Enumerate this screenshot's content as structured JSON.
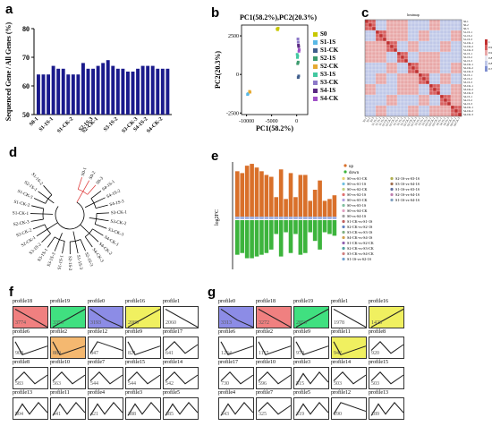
{
  "panels": {
    "a": {
      "label": "a"
    },
    "b": {
      "label": "b"
    },
    "c": {
      "label": "c"
    },
    "d": {
      "label": "d"
    },
    "e": {
      "label": "e"
    },
    "f": {
      "label": "f"
    },
    "g": {
      "label": "g"
    }
  },
  "chart_data": [
    {
      "type": "bar",
      "panel": "a",
      "ylabel": "Sequenced Gene / All Genes (%)",
      "ylim": [
        50,
        80
      ],
      "yticks": [
        50,
        60,
        70,
        80
      ],
      "categories": [
        "S0-1",
        "S0-2",
        "S0-3",
        "S1-1S-1",
        "S1-1S-2",
        "S1-1S-3",
        "S1-CK-1",
        "S1-CK-2",
        "S1-CK-3",
        "S2-1S-1",
        "S2-1S-2",
        "S2-1S-3",
        "S2-CK-1",
        "S2-CK-2",
        "S2-CK-3",
        "S3-1S-1",
        "S3-1S-2",
        "S3-1S-3",
        "S3-CK-1",
        "S3-CK-2",
        "S3-CK-3",
        "S4-1S-1",
        "S4-1S-2",
        "S4-1S-3",
        "S4-CK-1",
        "S4-CK-2",
        "S4-CK-3"
      ],
      "tick_labels": [
        "S0-1",
        "S1-1S-1",
        "S1-CK-2",
        "S2-1S-3",
        "S2-CK-1",
        "S3-1S-2",
        "S3-CK-3",
        "S4-1S-2",
        "S4-CK-2"
      ],
      "values": [
        64,
        64,
        64,
        67,
        66,
        66,
        64,
        64,
        64,
        68,
        66,
        66,
        67,
        68,
        69,
        67,
        66,
        66,
        65,
        65,
        66,
        67,
        67,
        67,
        66,
        66,
        66
      ],
      "color": "#1a1a8c"
    },
    {
      "type": "scatter",
      "panel": "b",
      "title": "PC1(58.2%),PC2(20.3%)",
      "xlabel": "PC1(58.2%)",
      "ylabel": "PC2(20.3%)",
      "xlim": [
        -11000,
        2200
      ],
      "ylim": [
        -2600,
        3200
      ],
      "xticks": [
        -10000,
        -5000,
        0
      ],
      "yticks": [
        -2500,
        0,
        2500
      ],
      "series": [
        {
          "name": "S0",
          "color": "#c8c800",
          "points": [
            [
              -3900,
              2950
            ],
            [
              -3700,
              3000
            ],
            [
              -3800,
              2900
            ]
          ]
        },
        {
          "name": "S1-1S",
          "color": "#5ab9e6",
          "points": [
            [
              -9800,
              -1300
            ],
            [
              -9700,
              -1250
            ]
          ]
        },
        {
          "name": "S1-CK",
          "color": "#3f5e8c",
          "points": [
            [
              300,
              -200
            ],
            [
              400,
              -100
            ]
          ]
        },
        {
          "name": "S2-1S",
          "color": "#3c9b6e",
          "points": [
            [
              200,
              700
            ],
            [
              300,
              800
            ]
          ]
        },
        {
          "name": "S2-CK",
          "color": "#e6aa32",
          "points": [
            [
              -9400,
              -1100
            ],
            [
              -9300,
              -1150
            ]
          ]
        },
        {
          "name": "S3-1S",
          "color": "#41c8a0",
          "points": [
            [
              100,
              1300
            ],
            [
              200,
              1200
            ],
            [
              150,
              1100
            ]
          ]
        },
        {
          "name": "S3-CK",
          "color": "#8c78c8",
          "points": [
            [
              250,
              2300
            ],
            [
              300,
              2100
            ]
          ]
        },
        {
          "name": "S4-1S",
          "color": "#5a2882",
          "points": [
            [
              350,
              1900
            ],
            [
              400,
              1800
            ]
          ]
        },
        {
          "name": "S4-CK",
          "color": "#a050c8",
          "points": [
            [
              500,
              1600
            ],
            [
              450,
              1500
            ]
          ]
        }
      ]
    },
    {
      "type": "heatmap",
      "panel": "c",
      "title": "heatmap",
      "row_labels": [
        "S0-1",
        "S0-2",
        "S0-3",
        "S1-1S-1",
        "S1-1S-2",
        "S1-1S-3",
        "S1-CK-1",
        "S1-CK-2",
        "S1-CK-3",
        "S2-1S-1",
        "S2-1S-2",
        "S2-1S-3",
        "S2-CK-1",
        "S2-CK-2",
        "S2-CK-3",
        "S3-1S-1",
        "S3-1S-2",
        "S3-1S-3",
        "S3-CK-1",
        "S3-CK-2",
        "S3-CK-3",
        "S4-1S-1",
        "S4-1S-2",
        "S4-1S-3",
        "S4-CK-1",
        "S4-CK-2",
        "S4-CK-3"
      ],
      "scale_labels": [
        "1",
        "0.95",
        "0.9",
        "0.85",
        "0.8",
        "0.75"
      ]
    },
    {
      "type": "table",
      "panel": "e",
      "ylabel": "log2FC",
      "legend_direction": [
        "up",
        "down"
      ],
      "legend_comparisons": [
        "S0-vs-S1-CK",
        "S0-vs-S1-1S",
        "S0-vs-S2-CK",
        "S0-vs-S2-1S",
        "S0-vs-S3-CK",
        "S0-vs-S3-1S",
        "S0-vs-S4-CK",
        "S0-vs-S4-1S",
        "S1-CK-vs-S1-1S",
        "S2-CK-vs-S2-1S",
        "S3-CK-vs-S3-1S",
        "S4-CK-vs-S4-1S",
        "S1-CK-vs-S2-CK",
        "S2-CK-vs-S3-CK",
        "S3-CK-vs-S4-CK",
        "S1-1S-vs-S2-1S",
        "S2-1S-vs-S3-1S",
        "S3-1S-vs-S4-1S",
        "S1-1S-vs-S3-1S",
        "S2-1S-vs-S4-1S",
        "S1-1S-vs-S4-1S"
      ]
    }
  ],
  "tree_labels": [
    "S0-1",
    "S0-2",
    "S0-3",
    "S4-1S-1",
    "S4-1S-2",
    "S4-1S-3",
    "S3-CK-1",
    "S3-CK-2",
    "S3-CK-3",
    "S4-CK-1",
    "S4-CK-2",
    "S4-CK-3",
    "S2-1S-3",
    "S1-1S-3",
    "S2-1S-2",
    "S1-1S-1",
    "S3-1S-3",
    "S3-1S-1",
    "S3-1S-2",
    "S2-CK-1",
    "S2-CK-2",
    "S2-CK-3",
    "S1-CK-1",
    "S1-CK-2",
    "S1-CK-3",
    "S2-1S-1",
    "S1-1S-2"
  ],
  "profiles_f": [
    {
      "name": "profile18",
      "count": "3774",
      "color": "#f08080",
      "shape": "down"
    },
    {
      "name": "profile19",
      "count": "3353",
      "color": "#40e080",
      "shape": "up"
    },
    {
      "name": "profile0",
      "count": "3193",
      "color": "#8c8ce6",
      "shape": "down2"
    },
    {
      "name": "profile16",
      "count": "2089",
      "color": "#f0f060",
      "shape": "up"
    },
    {
      "name": "profile1",
      "count": "2060",
      "color": "",
      "shape": "down"
    },
    {
      "name": "profile6",
      "count": "908",
      "color": "",
      "shape": "vup"
    },
    {
      "name": "profile2",
      "count": "880",
      "color": "#f4b870",
      "shape": "vup"
    },
    {
      "name": "profile12",
      "count": "847",
      "color": "",
      "shape": "vdown"
    },
    {
      "name": "profile9",
      "count": "821",
      "color": "",
      "shape": "vup"
    },
    {
      "name": "profile17",
      "count": "641",
      "color": "",
      "shape": "mix"
    },
    {
      "name": "profile8",
      "count": "583",
      "color": "",
      "shape": "mix"
    },
    {
      "name": "profile10",
      "count": "563",
      "color": "",
      "shape": "mix"
    },
    {
      "name": "profile7",
      "count": "544",
      "color": "",
      "shape": "mix"
    },
    {
      "name": "profile15",
      "count": "544",
      "color": "",
      "shape": "mix"
    },
    {
      "name": "profile14",
      "count": "542",
      "color": "",
      "shape": "mix"
    },
    {
      "name": "profile13",
      "count": "504",
      "color": "",
      "shape": "zig"
    },
    {
      "name": "profile11",
      "count": "441",
      "color": "",
      "shape": "zig"
    },
    {
      "name": "profile4",
      "count": "421",
      "color": "",
      "shape": "zig"
    },
    {
      "name": "profile3",
      "count": "388",
      "color": "",
      "shape": "zig"
    },
    {
      "name": "profile5",
      "count": "385",
      "color": "",
      "shape": "zig"
    }
  ],
  "profiles_g": [
    {
      "name": "profile0",
      "count": "3313",
      "color": "#8c8ce6",
      "shape": "down2"
    },
    {
      "name": "profile18",
      "count": "3272",
      "color": "#f08080",
      "shape": "down"
    },
    {
      "name": "profile19",
      "count": "2853",
      "color": "#40e080",
      "shape": "up"
    },
    {
      "name": "profile1",
      "count": "1978",
      "color": "",
      "shape": "down"
    },
    {
      "name": "profile16",
      "count": "1423",
      "color": "#f0f060",
      "shape": "up"
    },
    {
      "name": "profile6",
      "count": "1264",
      "color": "",
      "shape": "vup"
    },
    {
      "name": "profile2",
      "count": "1115",
      "color": "",
      "shape": "vup"
    },
    {
      "name": "profile9",
      "count": "970",
      "color": "",
      "shape": "vup"
    },
    {
      "name": "profile11",
      "count": "942",
      "color": "#f0f060",
      "shape": "vup"
    },
    {
      "name": "profile8",
      "count": "920",
      "color": "",
      "shape": "mix"
    },
    {
      "name": "profile17",
      "count": "730",
      "color": "",
      "shape": "mix"
    },
    {
      "name": "profile10",
      "count": "596",
      "color": "",
      "shape": "mix"
    },
    {
      "name": "profile3",
      "count": "515",
      "color": "",
      "shape": "zig"
    },
    {
      "name": "profile14",
      "count": "503",
      "color": "",
      "shape": "mix"
    },
    {
      "name": "profile15",
      "count": "503",
      "color": "",
      "shape": "mix"
    },
    {
      "name": "profile4",
      "count": "343",
      "color": "",
      "shape": "zig"
    },
    {
      "name": "profile7",
      "count": "325",
      "color": "",
      "shape": "mix"
    },
    {
      "name": "profile5",
      "count": "319",
      "color": "",
      "shape": "zig"
    },
    {
      "name": "profile12",
      "count": "290",
      "color": "",
      "shape": "vdown"
    },
    {
      "name": "profile13",
      "count": "289",
      "color": "",
      "shape": "zig"
    }
  ]
}
